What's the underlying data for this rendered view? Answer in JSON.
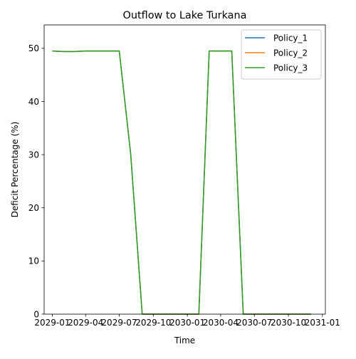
{
  "chart_data": {
    "type": "line",
    "title": "Outflow to Lake Turkana",
    "xlabel": "Time",
    "ylabel": "Deficit Percentage (%)",
    "xlim": [
      "2028-12-10",
      "2031-01-09"
    ],
    "ylim": [
      0,
      54.4
    ],
    "grid": false,
    "legend_position": "top-right",
    "x_tick_labels": [
      "2029-01",
      "2029-04",
      "2029-07",
      "2029-10",
      "2030-01",
      "2030-04",
      "2030-07",
      "2030-10",
      "2031-01"
    ],
    "y_tick_labels": [
      "0",
      "10",
      "20",
      "30",
      "40",
      "50"
    ],
    "x": [
      "2029-01-01",
      "2029-02-01",
      "2029-03-01",
      "2029-04-01",
      "2029-05-01",
      "2029-06-01",
      "2029-07-01",
      "2029-08-01",
      "2029-09-01",
      "2029-10-01",
      "2029-11-01",
      "2029-12-01",
      "2030-01-01",
      "2030-02-01",
      "2030-03-01",
      "2030-04-01",
      "2030-05-01",
      "2030-06-01",
      "2030-07-01",
      "2030-08-01",
      "2030-09-01",
      "2030-10-01",
      "2030-11-01",
      "2030-12-01"
    ],
    "series": [
      {
        "name": "Policy_1",
        "color": "#1f77b4",
        "values": [
          49.5,
          49.4,
          49.4,
          49.5,
          49.5,
          49.5,
          49.5,
          30.0,
          0,
          0,
          0,
          0,
          0,
          0,
          49.5,
          49.5,
          49.5,
          0,
          0,
          0,
          0,
          0,
          0,
          0
        ]
      },
      {
        "name": " Policy_2",
        "color": "#ff7f0e",
        "values": [
          49.5,
          49.4,
          49.4,
          49.5,
          49.5,
          49.5,
          49.5,
          30.0,
          0,
          0,
          0,
          0,
          0,
          0,
          49.5,
          49.5,
          49.5,
          0,
          0,
          0,
          0,
          0,
          0,
          0
        ]
      },
      {
        "name": " Policy_3",
        "color": "#2ca02c",
        "values": [
          49.5,
          49.4,
          49.4,
          49.5,
          49.5,
          49.5,
          49.5,
          30.0,
          0,
          0,
          0,
          0,
          0,
          0,
          49.5,
          49.5,
          49.5,
          0,
          0,
          0,
          0,
          0,
          0,
          0
        ]
      }
    ]
  }
}
